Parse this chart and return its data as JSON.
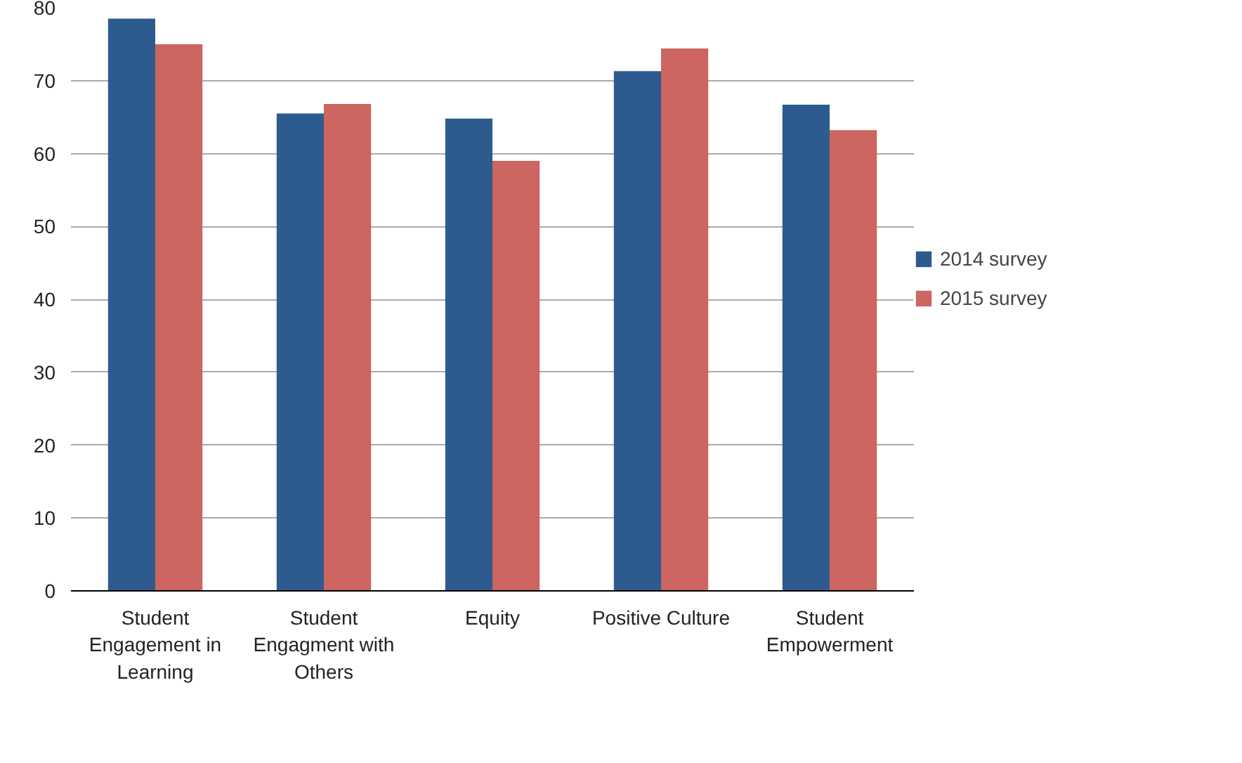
{
  "chart_data": {
    "type": "bar",
    "categories": [
      "Student Engagement in Learning",
      "Student Engagment with Others",
      "Equity",
      "Positive Culture",
      "Student Empowerment"
    ],
    "series": [
      {
        "name": "2014 survey",
        "color": "#2e5b8f",
        "values": [
          78.5,
          65.5,
          64.8,
          71.3,
          66.7
        ]
      },
      {
        "name": "2015 survey",
        "color": "#cd6560",
        "values": [
          75,
          66.8,
          59,
          74.4,
          63.2
        ]
      }
    ],
    "ylim": [
      0,
      80
    ],
    "yticks": [
      0,
      10,
      20,
      30,
      40,
      50,
      60,
      70,
      80
    ],
    "grid": "y",
    "legend": "right"
  }
}
